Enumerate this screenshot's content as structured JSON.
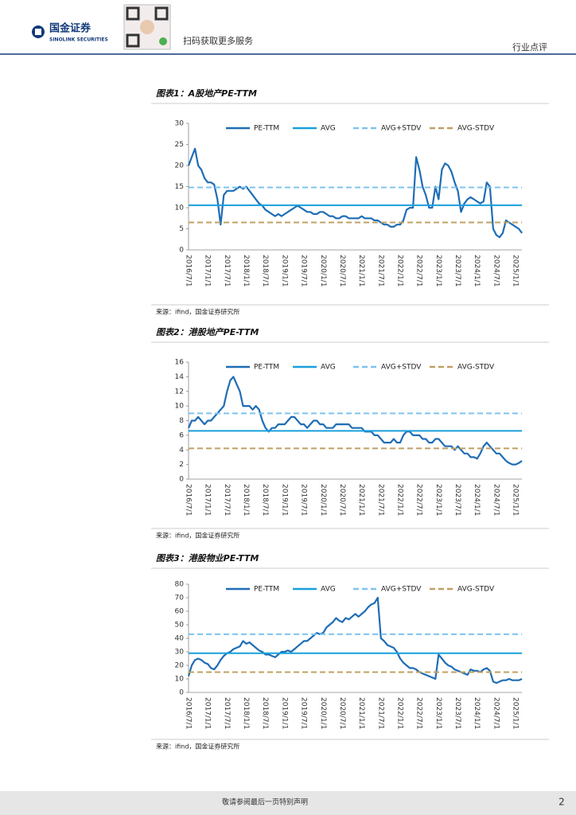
{
  "header": {
    "company": "国金证券",
    "company_en": "SINOLINK SECURITIES",
    "qr_text": "扫码获取更多服务",
    "category": "行业点评"
  },
  "footer": {
    "disclaimer": "敬请参阅最后一页特别声明",
    "page": "2"
  },
  "chart_data": [
    {
      "type": "line",
      "title": "图表1：A股地产PE-TTM",
      "source": "来源：ifind，国金证券研究所",
      "categories": [
        "2016/7/1",
        null,
        null,
        null,
        null,
        null,
        "2017/1/1",
        null,
        null,
        null,
        null,
        null,
        "2017/7/1",
        null,
        null,
        null,
        null,
        null,
        "2018/1/1",
        null,
        null,
        null,
        null,
        null,
        "2018/7/1",
        null,
        null,
        null,
        null,
        null,
        "2019/1/1",
        null,
        null,
        null,
        null,
        null,
        "2019/7/1",
        null,
        null,
        null,
        null,
        null,
        "2020/1/1",
        null,
        null,
        null,
        null,
        null,
        "2020/7/1",
        null,
        null,
        null,
        null,
        null,
        "2021/1/1",
        null,
        null,
        null,
        null,
        null,
        "2021/7/1",
        null,
        null,
        null,
        null,
        null,
        "2022/1/1",
        null,
        null,
        null,
        null,
        null,
        "2022/7/1",
        null,
        null,
        null,
        null,
        null,
        "2023/1/1",
        null,
        null,
        null,
        null,
        null,
        "2023/7/1",
        null,
        null,
        null,
        null,
        null,
        "2024/1/1",
        null,
        null,
        null,
        null,
        null,
        "2024/7/1",
        null,
        null,
        null,
        null,
        null,
        "2025/1/1",
        null,
        null
      ],
      "ylim": [
        0,
        30
      ],
      "yticks": [
        0,
        5,
        10,
        15,
        20,
        25,
        30
      ],
      "series": [
        {
          "name": "PE-TTM",
          "color": "#1f6db5",
          "values": [
            20,
            22,
            24,
            20,
            19,
            17,
            16,
            16,
            15.5,
            12,
            6,
            13,
            14,
            14,
            14,
            14.5,
            15,
            14.5,
            15,
            14,
            13,
            12,
            11,
            10.5,
            9.5,
            9,
            8.5,
            8,
            8.5,
            8,
            8.5,
            9,
            9.5,
            10,
            10.5,
            10,
            9.5,
            9,
            9,
            8.5,
            8.5,
            9,
            9,
            8.5,
            8,
            8,
            7.5,
            7.5,
            8,
            8,
            7.5,
            7.5,
            7.5,
            7.5,
            8,
            7.5,
            7.5,
            7.5,
            7,
            7,
            6.5,
            6,
            6,
            5.5,
            5.5,
            6,
            6,
            7,
            9.5,
            10,
            10,
            22,
            19,
            15,
            13,
            10,
            10,
            15,
            12,
            19,
            20.5,
            20,
            18.5,
            16,
            14,
            9,
            11,
            12,
            12.5,
            12,
            11.5,
            11,
            11.5,
            16,
            15,
            5,
            3.5,
            3,
            4,
            7,
            6.5,
            6,
            5.5,
            5,
            4
          ]
        },
        {
          "name": "AVG",
          "color": "#19a0dc",
          "value": 10.6
        },
        {
          "name": "AVG+STDV",
          "color": "#7ec3ee",
          "dashed": true,
          "value": 14.8
        },
        {
          "name": "AVG-STDV",
          "color": "#bfa063",
          "dashed": true,
          "value": 6.5
        }
      ]
    },
    {
      "type": "line",
      "title": "图表2：港股地产PE-TTM",
      "source": "来源：ifind，国金证券研究所",
      "categories": [
        "2016/7/1",
        null,
        null,
        null,
        null,
        null,
        "2017/1/1",
        null,
        null,
        null,
        null,
        null,
        "2017/7/1",
        null,
        null,
        null,
        null,
        null,
        "2018/1/1",
        null,
        null,
        null,
        null,
        null,
        "2018/7/1",
        null,
        null,
        null,
        null,
        null,
        "2019/1/1",
        null,
        null,
        null,
        null,
        null,
        "2019/7/1",
        null,
        null,
        null,
        null,
        null,
        "2020/1/1",
        null,
        null,
        null,
        null,
        null,
        "2020/7/1",
        null,
        null,
        null,
        null,
        null,
        "2021/1/1",
        null,
        null,
        null,
        null,
        null,
        "2021/7/1",
        null,
        null,
        null,
        null,
        null,
        "2022/1/1",
        null,
        null,
        null,
        null,
        null,
        "2022/7/1",
        null,
        null,
        null,
        null,
        null,
        "2023/1/1",
        null,
        null,
        null,
        null,
        null,
        "2023/7/1",
        null,
        null,
        null,
        null,
        null,
        "2024/1/1",
        null,
        null,
        null,
        null,
        null,
        "2024/7/1",
        null,
        null,
        null,
        null,
        null,
        "2025/1/1",
        null,
        null
      ],
      "ylim": [
        0,
        16
      ],
      "yticks": [
        0,
        2,
        4,
        6,
        8,
        10,
        12,
        14,
        16
      ],
      "series": [
        {
          "name": "PE-TTM",
          "color": "#1f6db5",
          "values": [
            7,
            8,
            8,
            8.5,
            8,
            7.5,
            8,
            8,
            8.5,
            9,
            9.5,
            10,
            12,
            13.5,
            14,
            13,
            12,
            10,
            10,
            10,
            9.5,
            10,
            9.5,
            8,
            7,
            6.5,
            7,
            7,
            7.5,
            7.5,
            7.5,
            8,
            8.5,
            8.5,
            8,
            7.5,
            7.5,
            7,
            7.5,
            8,
            8,
            7.5,
            7.5,
            7,
            7,
            7,
            7.5,
            7.5,
            7.5,
            7.5,
            7.5,
            7,
            7,
            7,
            7,
            6.5,
            6.5,
            6.5,
            6,
            6,
            5.5,
            5,
            5,
            5,
            5.5,
            5,
            5,
            6,
            6.5,
            6.5,
            6,
            6,
            6,
            5.5,
            5.5,
            5,
            5,
            5.5,
            5.5,
            5,
            4.5,
            4.5,
            4.5,
            4,
            4.5,
            4,
            3.5,
            3.5,
            3,
            3,
            2.8,
            3.5,
            4.5,
            5,
            4.5,
            4,
            3.5,
            3.5,
            3,
            2.5,
            2.2,
            2,
            2,
            2.2,
            2.5
          ]
        },
        {
          "name": "AVG",
          "color": "#19a0dc",
          "value": 6.6
        },
        {
          "name": "AVG+STDV",
          "color": "#7ec3ee",
          "dashed": true,
          "value": 9
        },
        {
          "name": "AVG-STDV",
          "color": "#bfa063",
          "dashed": true,
          "value": 4.2
        }
      ]
    },
    {
      "type": "line",
      "title": "图表3：港股物业PE-TTM",
      "source": "来源：ifind，国金证券研究所",
      "categories": [
        "2016/7/1",
        null,
        null,
        null,
        null,
        null,
        "2017/1/1",
        null,
        null,
        null,
        null,
        null,
        "2017/7/1",
        null,
        null,
        null,
        null,
        null,
        "2018/1/1",
        null,
        null,
        null,
        null,
        null,
        "2018/7/1",
        null,
        null,
        null,
        null,
        null,
        "2019/1/1",
        null,
        null,
        null,
        null,
        null,
        "2019/7/1",
        null,
        null,
        null,
        null,
        null,
        "2020/1/1",
        null,
        null,
        null,
        null,
        null,
        "2020/7/1",
        null,
        null,
        null,
        null,
        null,
        "2021/1/1",
        null,
        null,
        null,
        null,
        null,
        "2021/7/1",
        null,
        null,
        null,
        null,
        null,
        "2022/1/1",
        null,
        null,
        null,
        null,
        null,
        "2022/7/1",
        null,
        null,
        null,
        null,
        null,
        "2023/1/1",
        null,
        null,
        null,
        null,
        null,
        "2023/7/1",
        null,
        null,
        null,
        null,
        null,
        "2024/1/1",
        null,
        null,
        null,
        null,
        null,
        "2024/7/1",
        null,
        null,
        null,
        null,
        null,
        "2025/1/1",
        null,
        null
      ],
      "ylim": [
        0,
        80
      ],
      "yticks": [
        0,
        10,
        20,
        30,
        40,
        50,
        60,
        70,
        80
      ],
      "series": [
        {
          "name": "PE-TTM",
          "color": "#1f6db5",
          "values": [
            12,
            20,
            24,
            25,
            24,
            22,
            21,
            18,
            17,
            20,
            24,
            27,
            29,
            30,
            32,
            33,
            34,
            38,
            36,
            37,
            35,
            33,
            31,
            30,
            28,
            28,
            27,
            26,
            28,
            30,
            30,
            31,
            30,
            32,
            34,
            36,
            38,
            38,
            40,
            42,
            44,
            43,
            44,
            48,
            50,
            52,
            55,
            53,
            52,
            55,
            54,
            56,
            58,
            56,
            58,
            60,
            63,
            65,
            66,
            70,
            40,
            38,
            35,
            34,
            33,
            30,
            25,
            22,
            20,
            18,
            18,
            17,
            15,
            14,
            13,
            12,
            11,
            10,
            28,
            25,
            22,
            20,
            19,
            17,
            16,
            15,
            14,
            13,
            17,
            16,
            16,
            15,
            17,
            18,
            16,
            8,
            7,
            8,
            9,
            9,
            10,
            9,
            9,
            9,
            10
          ]
        },
        {
          "name": "AVG",
          "color": "#19a0dc",
          "value": 29
        },
        {
          "name": "AVG+STDV",
          "color": "#7ec3ee",
          "dashed": true,
          "value": 43
        },
        {
          "name": "AVG-STDV",
          "color": "#bfa063",
          "dashed": true,
          "value": 15
        }
      ]
    }
  ]
}
